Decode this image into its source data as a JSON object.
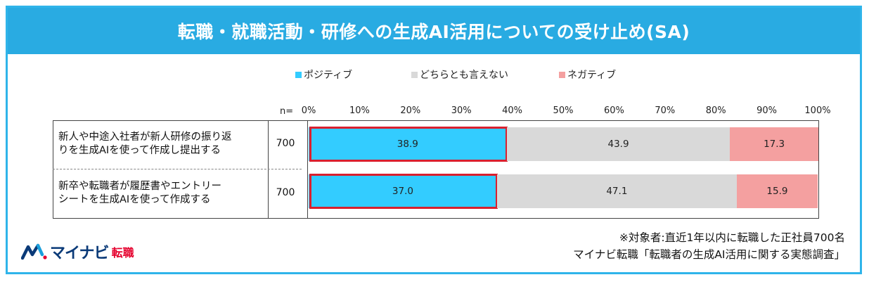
{
  "header": {
    "title": "転職・就職活動・研修への生成AI活用についての受け止め(SA)"
  },
  "legend": [
    {
      "label": "ポジティブ",
      "color": "#33ccff"
    },
    {
      "label": "どちらとも言えない",
      "color": "#d9d9d9"
    },
    {
      "label": "ネガティブ",
      "color": "#f4a0a0"
    }
  ],
  "n_header": "n=",
  "chart_data": {
    "type": "bar",
    "stacked": true,
    "orientation": "horizontal",
    "axis_ticks": [
      "0%",
      "10%",
      "20%",
      "30%",
      "40%",
      "50%",
      "60%",
      "70%",
      "80%",
      "90%",
      "100%"
    ],
    "xlim": [
      0,
      100
    ],
    "categories": [
      "新人や中途入社者が新人研修の振り返りを生成AIを使って作成し提出する",
      "新卒や転職者が履歴書やエントリーシートを生成AIを使って作成する"
    ],
    "n": [
      "700",
      "700"
    ],
    "series": [
      {
        "name": "ポジティブ",
        "values": [
          38.9,
          37.0
        ],
        "labels": [
          "38.9",
          "37.0"
        ],
        "highlighted": true
      },
      {
        "name": "どちらとも言えない",
        "values": [
          43.9,
          47.1
        ],
        "labels": [
          "43.9",
          "47.1"
        ]
      },
      {
        "name": "ネガティブ",
        "values": [
          17.3,
          15.9
        ],
        "labels": [
          "17.3",
          "15.9"
        ]
      }
    ]
  },
  "rows_text": [
    {
      "line1": "新人や中途入社者が新人研修の振り返",
      "line2": "りを生成AIを使って作成し提出する"
    },
    {
      "line1": "新卒や転職者が履歴書やエントリー",
      "line2": "シートを生成AIを使って作成する"
    }
  ],
  "footer": {
    "brand": "マイナビ",
    "brand_sub": "転職",
    "note1": "※対象者:直近1年以内に転職した正社員700名",
    "note2": "マイナビ転職「転職者の生成AI活用に関する実態調査」"
  }
}
